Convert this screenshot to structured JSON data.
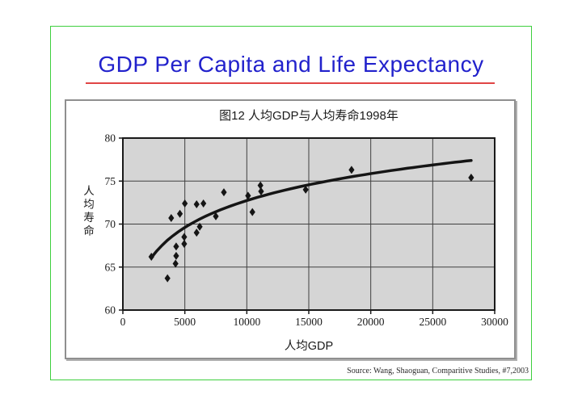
{
  "slide": {
    "title": "GDP Per Capita and Life Expectancy",
    "source": "Source: Wang, Shaoguan, Comparitive Studies, #7,2003"
  },
  "colors": {
    "title_blue": "#2222cc",
    "underline_red": "#e04545",
    "frame_green": "#3ecf3e",
    "plot_background": "#d5d5d5",
    "gridline": "#404040",
    "axis": "#1a1a1a",
    "ink": "#151515"
  },
  "chart_data": {
    "type": "scatter",
    "title": "图12  人均GDP与人均寿命1998年",
    "xlabel": "人均GDP",
    "ylabel": "人均寿命",
    "xlim": [
      0,
      30000
    ],
    "ylim": [
      60,
      80
    ],
    "x_ticks": [
      0,
      5000,
      10000,
      15000,
      20000,
      25000,
      30000
    ],
    "y_ticks": [
      60,
      65,
      70,
      75,
      80
    ],
    "grid": true,
    "legend": "none",
    "marker": "diamond",
    "points": [
      [
        2300,
        66.2
      ],
      [
        3600,
        63.7
      ],
      [
        3900,
        70.7
      ],
      [
        4250,
        65.4
      ],
      [
        4300,
        66.3
      ],
      [
        4300,
        67.4
      ],
      [
        4600,
        71.2
      ],
      [
        4950,
        67.7
      ],
      [
        4950,
        68.5
      ],
      [
        5000,
        72.4
      ],
      [
        5950,
        69.0
      ],
      [
        5950,
        72.3
      ],
      [
        6200,
        69.7
      ],
      [
        6500,
        72.4
      ],
      [
        7500,
        70.9
      ],
      [
        8150,
        73.7
      ],
      [
        10100,
        73.3
      ],
      [
        10450,
        71.4
      ],
      [
        11100,
        74.5
      ],
      [
        11150,
        73.8
      ],
      [
        14750,
        74.0
      ],
      [
        18450,
        76.3
      ],
      [
        28100,
        75.4
      ]
    ],
    "trendline": {
      "type": "logarithmic",
      "x_start": 2300,
      "y_start": 66.1,
      "x_end": 28100,
      "y_end": 77.4
    }
  }
}
